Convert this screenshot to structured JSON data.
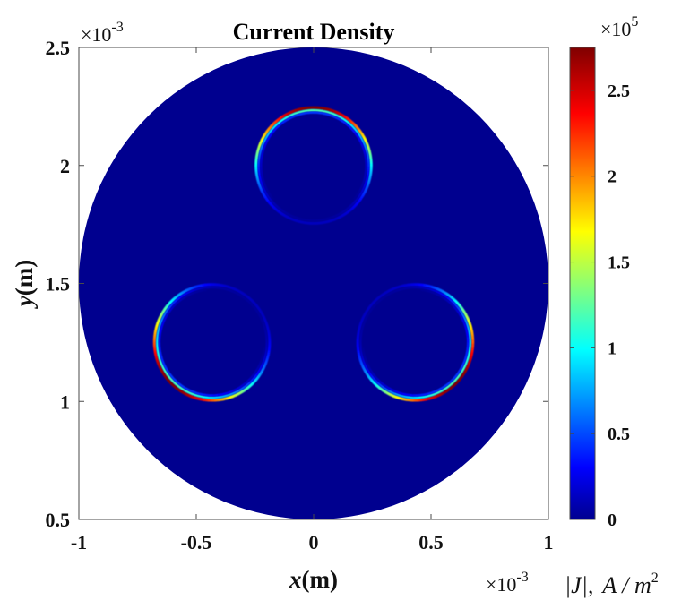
{
  "chart_data": {
    "type": "heatmap",
    "title": "Current Density",
    "xlabel": "x(m)",
    "xlabel_var": "x",
    "xlabel_unit": "(m)",
    "ylabel": "y(m)",
    "ylabel_var": "y",
    "ylabel_unit": "(m)",
    "xlim": [
      -1,
      1
    ],
    "ylim": [
      0.5,
      2.5
    ],
    "x_ticks": [
      -1,
      -0.5,
      0,
      0.5,
      1
    ],
    "x_tick_labels": [
      "-1",
      "-0.5",
      "0",
      "0.5",
      "1"
    ],
    "y_ticks": [
      0.5,
      1,
      1.5,
      2,
      2.5
    ],
    "y_tick_labels": [
      "0.5",
      "1",
      "1.5",
      "2",
      "2.5"
    ],
    "axis_multiplier_label": "×10",
    "axis_multiplier_exp": "-3",
    "colorbar": {
      "label": "|J|,  A / m",
      "label_var": "|J|,",
      "label_unit": "A / m",
      "label_unit_exp": "2",
      "multiplier_label": "×10",
      "multiplier_exp": "5",
      "range": [
        0,
        2.75
      ],
      "ticks": [
        0,
        0.5,
        1,
        1.5,
        2,
        2.5
      ],
      "tick_labels": [
        "0",
        "0.5",
        "1",
        "1.5",
        "2",
        "2.5"
      ],
      "colormap": "jet"
    },
    "domain": {
      "shape": "circle",
      "center": [
        0,
        1.5
      ],
      "radius": 1.0,
      "background_value": 0.02
    },
    "conductors": [
      {
        "center": [
          0,
          2.0
        ],
        "radius": 0.245,
        "peak_value": 2.75,
        "max_edge": "top"
      },
      {
        "center": [
          -0.433,
          1.25
        ],
        "radius": 0.245,
        "peak_value": 2.75,
        "max_edge": "bottom-left"
      },
      {
        "center": [
          0.433,
          1.25
        ],
        "radius": 0.245,
        "peak_value": 2.75,
        "max_edge": "bottom-right"
      }
    ],
    "grid": false
  },
  "colors": {
    "background_fill": "#00008f",
    "jet_stops": [
      "#00008f",
      "#0000ff",
      "#00ffff",
      "#ffff00",
      "#ff0000",
      "#800000"
    ]
  }
}
